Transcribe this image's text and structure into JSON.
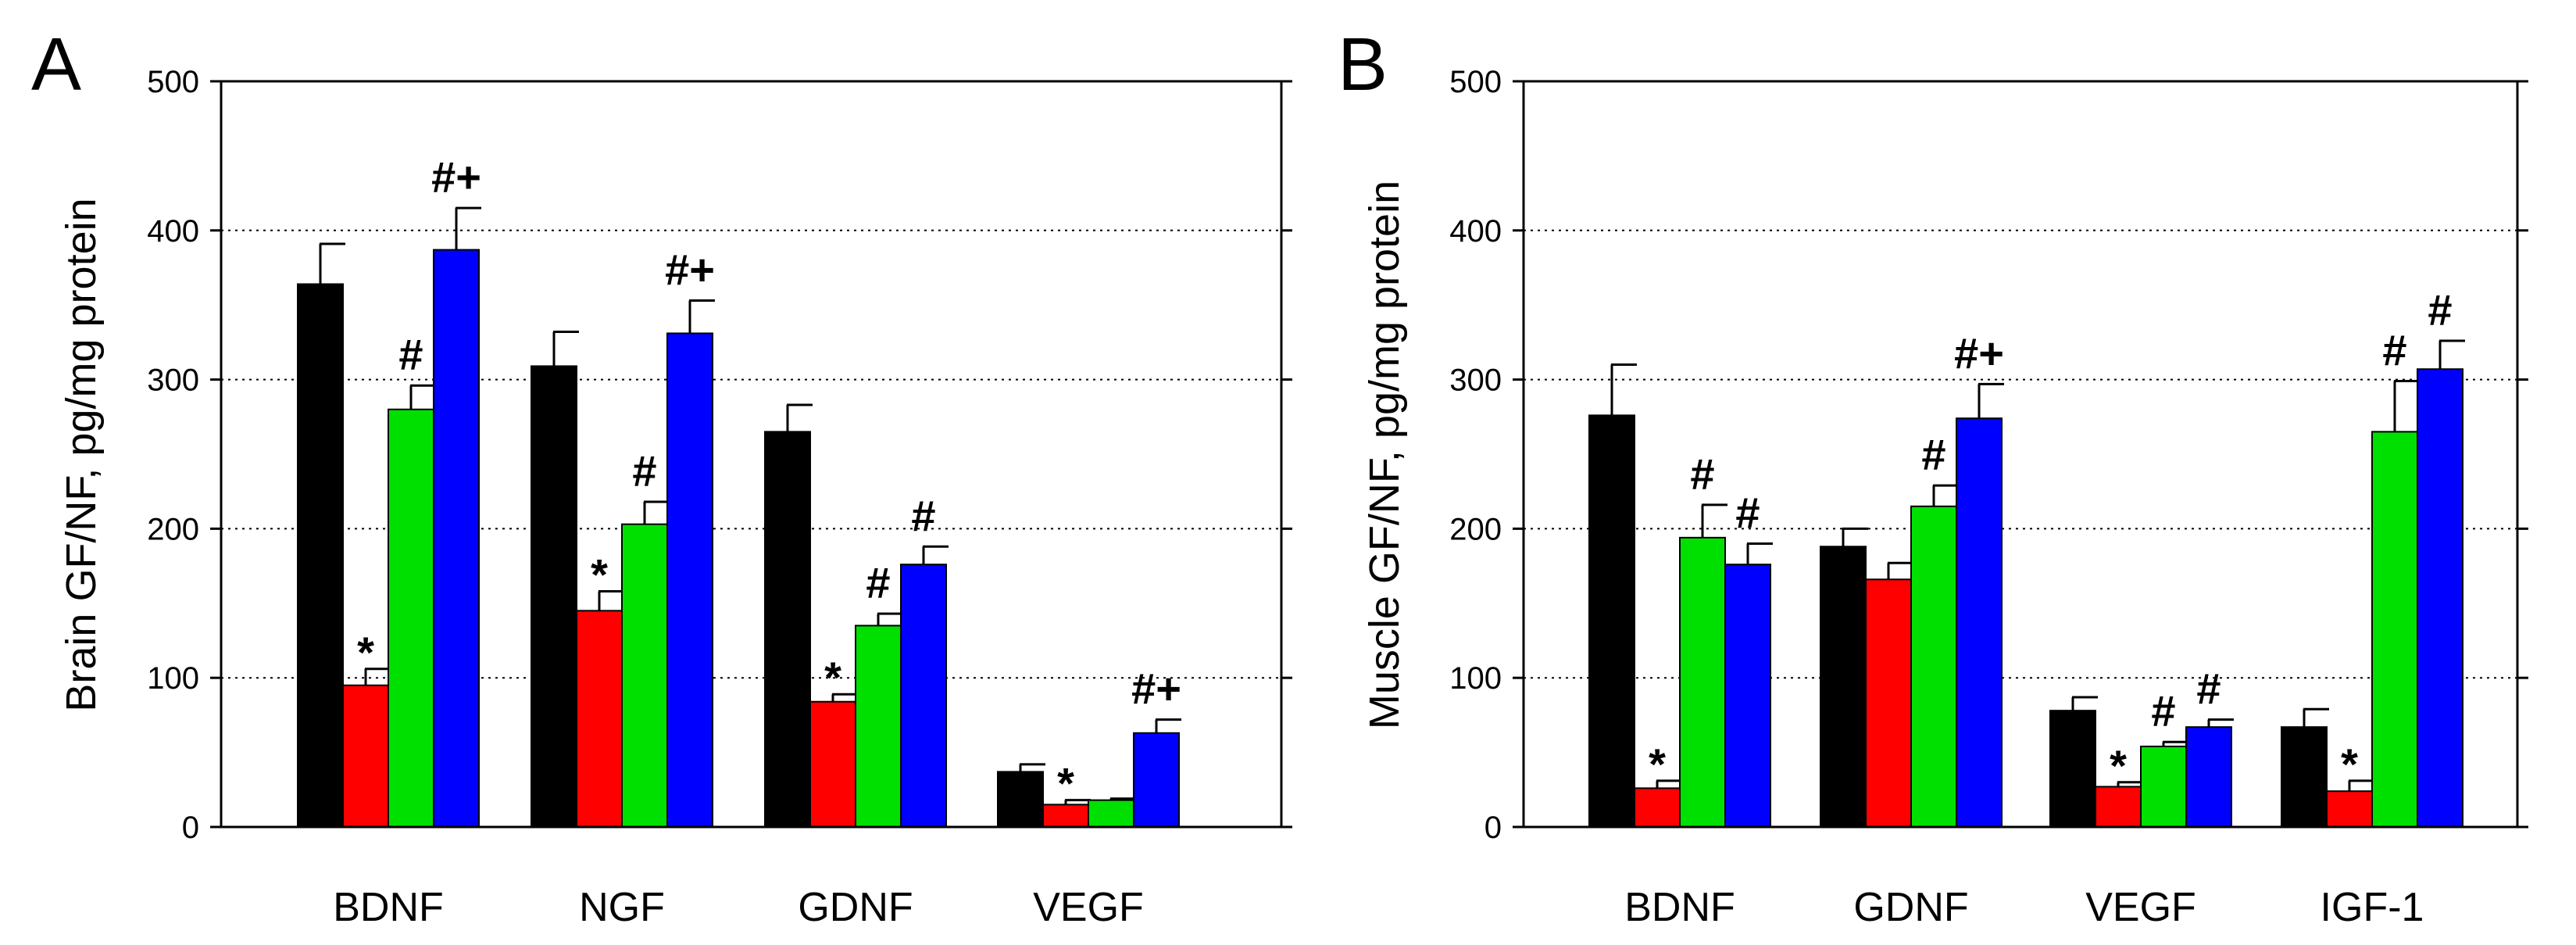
{
  "colors": {
    "control": "#000000",
    "group2": "#ff0000",
    "group3": "#00e000",
    "group4": "#0000ff",
    "axis": "#000000",
    "grid": "#000000"
  },
  "chart_data": [
    {
      "type": "bar",
      "panel": "A",
      "ylabel": "Brain GF/NF, pg/mg protein",
      "ylim": [
        0,
        500
      ],
      "yticks": [
        "0",
        "100",
        "200",
        "300",
        "400",
        "500"
      ],
      "yticks_values": [
        0,
        100,
        200,
        300,
        400,
        500
      ],
      "grid": "horizontal dotted",
      "categories": [
        "BDNF",
        "NGF",
        "GDNF",
        "VEGF"
      ],
      "series": [
        {
          "name": "group1",
          "color": "#000000",
          "values": [
            364,
            309,
            265,
            37
          ],
          "errors": [
            27,
            23,
            18,
            5
          ]
        },
        {
          "name": "group2",
          "color": "#ff0000",
          "values": [
            95,
            145,
            84,
            15
          ],
          "errors": [
            11,
            13,
            5,
            3
          ]
        },
        {
          "name": "group3",
          "color": "#00e000",
          "values": [
            280,
            203,
            135,
            18
          ],
          "errors": [
            16,
            15,
            8,
            1
          ]
        },
        {
          "name": "group4",
          "color": "#0000ff",
          "values": [
            387,
            331,
            176,
            63
          ],
          "errors": [
            28,
            22,
            12,
            9
          ]
        }
      ],
      "annotations": [
        {
          "category": 0,
          "series": 1,
          "text": "*"
        },
        {
          "category": 0,
          "series": 2,
          "text": "#"
        },
        {
          "category": 0,
          "series": 3,
          "text": "#+"
        },
        {
          "category": 1,
          "series": 1,
          "text": "*"
        },
        {
          "category": 1,
          "series": 2,
          "text": "#"
        },
        {
          "category": 1,
          "series": 3,
          "text": "#+"
        },
        {
          "category": 2,
          "series": 1,
          "text": "*"
        },
        {
          "category": 2,
          "series": 2,
          "text": "#"
        },
        {
          "category": 2,
          "series": 3,
          "text": "#"
        },
        {
          "category": 3,
          "series": 1,
          "text": "*"
        },
        {
          "category": 3,
          "series": 3,
          "text": "#+"
        }
      ]
    },
    {
      "type": "bar",
      "panel": "B",
      "ylabel": "Muscle GF/NF, pg/mg protein",
      "ylim": [
        0,
        500
      ],
      "yticks": [
        "0",
        "100",
        "200",
        "300",
        "400",
        "500"
      ],
      "yticks_values": [
        0,
        100,
        200,
        300,
        400,
        500
      ],
      "grid": "horizontal dotted",
      "categories": [
        "BDNF",
        "GDNF",
        "VEGF",
        "IGF-1"
      ],
      "series": [
        {
          "name": "group1",
          "color": "#000000",
          "values": [
            276,
            188,
            78,
            67
          ],
          "errors": [
            34,
            12,
            9,
            12
          ]
        },
        {
          "name": "group2",
          "color": "#ff0000",
          "values": [
            26,
            166,
            27,
            24
          ],
          "errors": [
            5,
            11,
            3,
            7
          ]
        },
        {
          "name": "group3",
          "color": "#00e000",
          "values": [
            194,
            215,
            54,
            265
          ],
          "errors": [
            22,
            14,
            3,
            34
          ]
        },
        {
          "name": "group4",
          "color": "#0000ff",
          "values": [
            176,
            274,
            67,
            307
          ],
          "errors": [
            14,
            23,
            5,
            19
          ]
        }
      ],
      "annotations": [
        {
          "category": 0,
          "series": 1,
          "text": "*"
        },
        {
          "category": 0,
          "series": 2,
          "text": "#"
        },
        {
          "category": 0,
          "series": 3,
          "text": "#"
        },
        {
          "category": 1,
          "series": 2,
          "text": "#"
        },
        {
          "category": 1,
          "series": 3,
          "text": "#+"
        },
        {
          "category": 2,
          "series": 1,
          "text": "*"
        },
        {
          "category": 2,
          "series": 2,
          "text": "#"
        },
        {
          "category": 2,
          "series": 3,
          "text": "#"
        },
        {
          "category": 3,
          "series": 1,
          "text": "*"
        },
        {
          "category": 3,
          "series": 2,
          "text": "#"
        },
        {
          "category": 3,
          "series": 3,
          "text": "#"
        }
      ]
    }
  ]
}
